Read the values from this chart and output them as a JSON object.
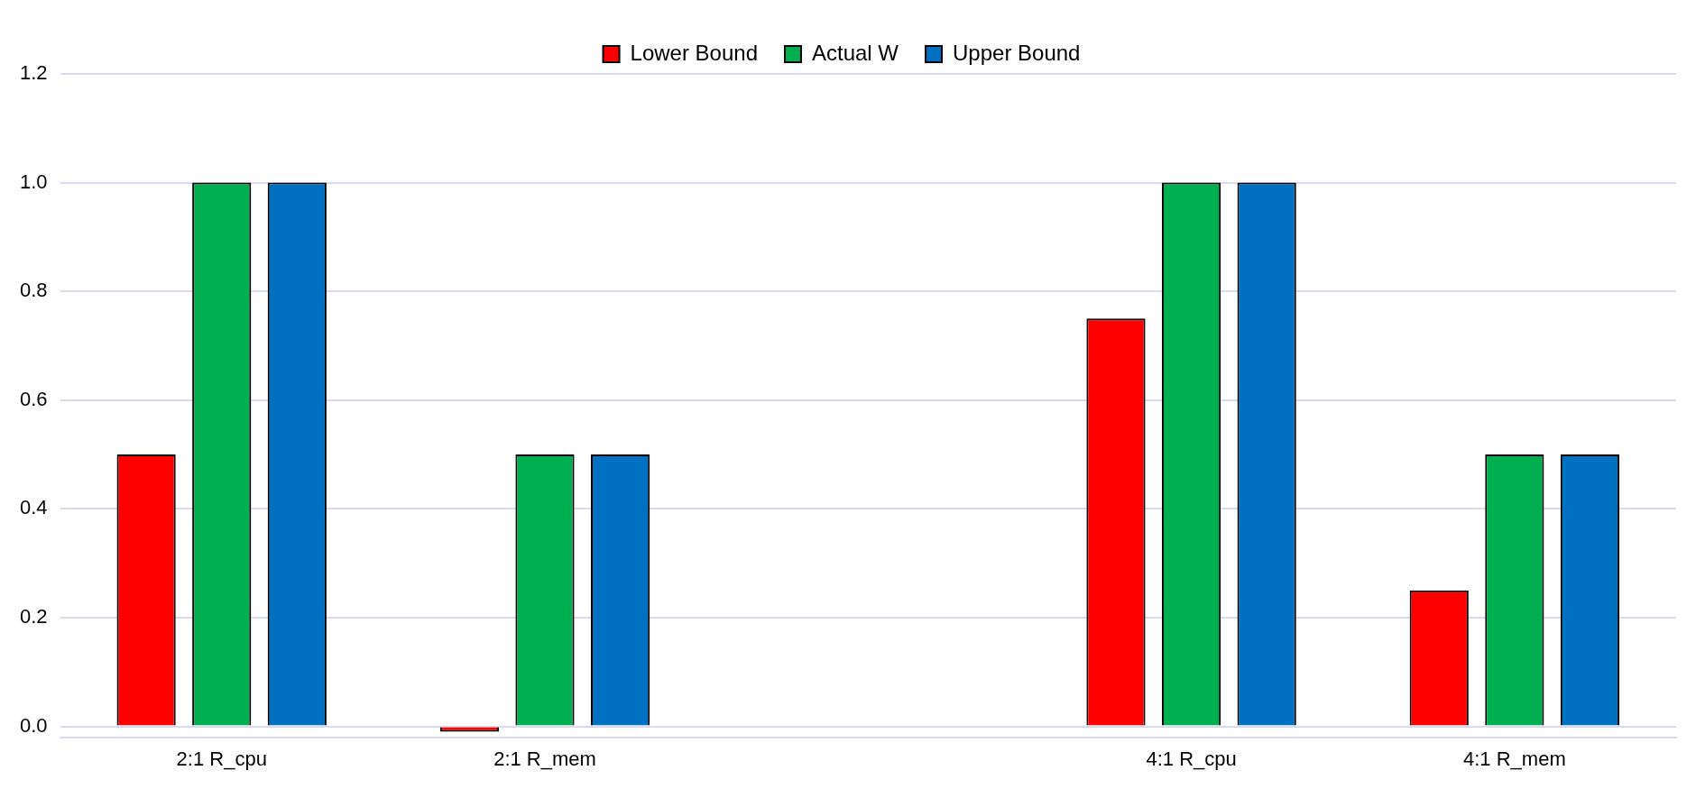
{
  "chart_data": {
    "type": "bar",
    "categories": [
      "2:1 R_cpu",
      "2:1 R_mem",
      null,
      "4:1 R_cpu",
      "4:1 R_mem"
    ],
    "series": [
      {
        "name": "Lower Bound",
        "color": "#ff0000",
        "values": [
          0.5,
          -0.01,
          null,
          0.75,
          0.25
        ]
      },
      {
        "name": "Actual W",
        "color": "#00b050",
        "values": [
          1.0,
          0.5,
          null,
          1.0,
          0.5
        ]
      },
      {
        "name": "Upper Bound",
        "color": "#0070c0",
        "values": [
          1.0,
          0.5,
          null,
          1.0,
          0.5
        ]
      }
    ],
    "ylim": [
      -0.02,
      1.2
    ],
    "yticks": [
      {
        "value": 0,
        "label": "0.0"
      },
      0.2,
      0.4,
      0.6,
      0.8,
      {
        "value": 1,
        "label": "1.0"
      },
      1.2
    ],
    "grid": "y",
    "legend": "top"
  }
}
